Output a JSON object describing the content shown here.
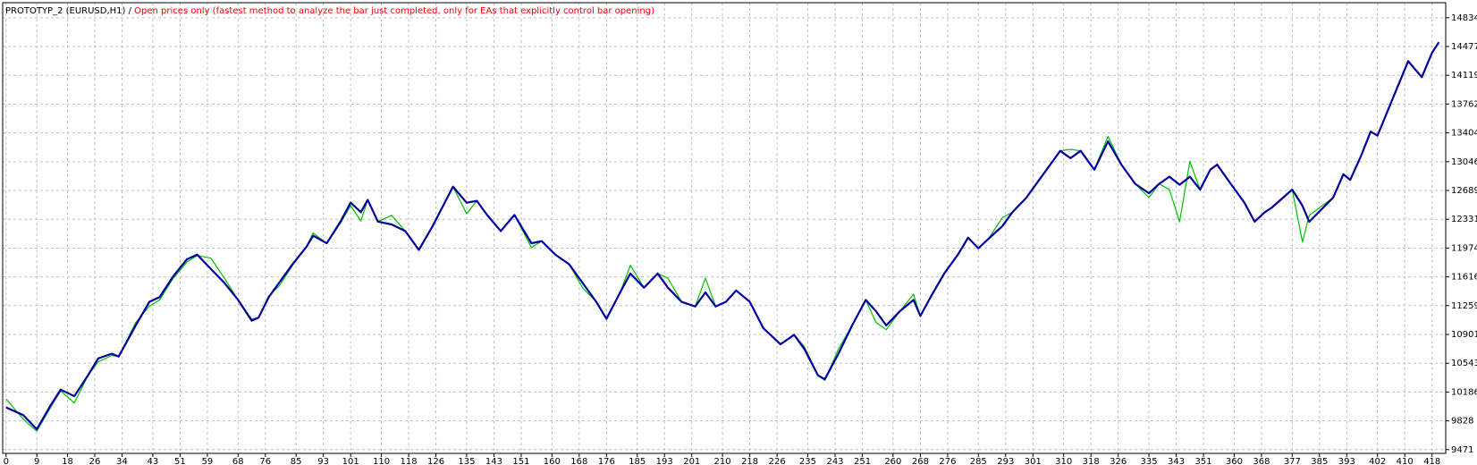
{
  "chart_data": {
    "type": "line",
    "title": "PROTOTYP_2 (EURUSD,H1) /",
    "subtitle": "Open prices only (fastest method to analyze the bar just completed, only for EAs that explicitly control bar opening)",
    "x": [
      0,
      5,
      9,
      13,
      16,
      20,
      24,
      27,
      31,
      33,
      38,
      42,
      45,
      49,
      53,
      56,
      60,
      64,
      68,
      72,
      74,
      77,
      80,
      84,
      88,
      90,
      94,
      98,
      101,
      104,
      106,
      109,
      113,
      117,
      121,
      125,
      129,
      131,
      135,
      138,
      141,
      145,
      149,
      154,
      157,
      161,
      165,
      169,
      173,
      176,
      180,
      183,
      187,
      191,
      194,
      198,
      202,
      205,
      208,
      211,
      214,
      218,
      222,
      227,
      231,
      234,
      238,
      240,
      244,
      248,
      252,
      255,
      258,
      262,
      266,
      268,
      271,
      275,
      279,
      282,
      285,
      288,
      292,
      295,
      299,
      303,
      307,
      309,
      312,
      315,
      319,
      323,
      327,
      331,
      335,
      338,
      341,
      344,
      347,
      350,
      353,
      355,
      359,
      363,
      366,
      369,
      371,
      377,
      380,
      382,
      389,
      392,
      394,
      397,
      400,
      402,
      407,
      411,
      415,
      418,
      420
    ],
    "series": [
      {
        "color": "#00c000",
        "values": [
          10100,
          9850,
          9700,
          9990,
          10200,
          10050,
          10392,
          10560,
          10640,
          10626,
          11050,
          11250,
          11330,
          11600,
          11800,
          11880,
          11850,
          11600,
          11330,
          11090,
          11110,
          11380,
          11500,
          11760,
          11990,
          12160,
          12033,
          12280,
          12500,
          12310,
          12572,
          12302,
          12380,
          12185,
          11951,
          12244,
          12572,
          12736,
          12400,
          12560,
          12385,
          12185,
          12385,
          11980,
          12060,
          11892,
          11775,
          11480,
          11306,
          11095,
          11423,
          11760,
          11482,
          11658,
          11600,
          11306,
          11248,
          11600,
          11248,
          11306,
          11447,
          11306,
          10978,
          10779,
          10896,
          10750,
          10392,
          10330,
          10720,
          11013,
          11330,
          11050,
          10960,
          11189,
          11400,
          11130,
          11365,
          11658,
          11892,
          12103,
          11970,
          12090,
          12350,
          12420,
          12596,
          12830,
          13064,
          13181,
          13200,
          13181,
          12947,
          13360,
          13005,
          12771,
          12600,
          12771,
          12700,
          12300,
          13050,
          12700,
          12947,
          13010,
          12771,
          12537,
          12302,
          12420,
          12475,
          12700,
          12050,
          12380,
          12600,
          12890,
          12820,
          13100,
          13420,
          13370,
          13885,
          14295,
          14096,
          14400,
          14530
        ]
      },
      {
        "color": "#0000a0",
        "values": [
          9994,
          9900,
          9724,
          10017,
          10216,
          10134,
          10392,
          10603,
          10662,
          10626,
          11013,
          11306,
          11365,
          11623,
          11834,
          11892,
          11716,
          11541,
          11330,
          11072,
          11110,
          11365,
          11541,
          11775,
          11986,
          12127,
          12033,
          12302,
          12537,
          12420,
          12572,
          12302,
          12267,
          12185,
          11951,
          12244,
          12572,
          12736,
          12537,
          12560,
          12385,
          12185,
          12385,
          12033,
          12060,
          11892,
          11775,
          11541,
          11306,
          11095,
          11423,
          11658,
          11482,
          11658,
          11482,
          11306,
          11248,
          11423,
          11248,
          11306,
          11447,
          11306,
          10978,
          10779,
          10896,
          10720,
          10392,
          10345,
          10662,
          11013,
          11330,
          11189,
          11013,
          11189,
          11330,
          11130,
          11365,
          11658,
          11892,
          12103,
          11970,
          12090,
          12244,
          12420,
          12596,
          12830,
          13064,
          13181,
          13090,
          13181,
          12947,
          13299,
          13005,
          12771,
          12654,
          12771,
          12860,
          12760,
          12860,
          12700,
          12947,
          13010,
          12771,
          12537,
          12302,
          12420,
          12475,
          12700,
          12500,
          12300,
          12600,
          12890,
          12820,
          13100,
          13420,
          13370,
          13885,
          14295,
          14096,
          14400,
          14530
        ]
      }
    ],
    "xlim": [
      -1,
      422
    ],
    "ylim": [
      9424,
      15021
    ],
    "xticks": [
      0,
      9,
      18,
      26,
      34,
      43,
      51,
      59,
      68,
      76,
      85,
      93,
      101,
      110,
      118,
      126,
      135,
      143,
      151,
      160,
      168,
      176,
      185,
      193,
      201,
      210,
      218,
      226,
      235,
      243,
      251,
      260,
      268,
      276,
      285,
      293,
      301,
      310,
      318,
      326,
      335,
      343,
      351,
      360,
      368,
      377,
      385,
      393,
      402,
      410,
      418
    ],
    "yticks": [
      9471,
      9828,
      10186,
      10543,
      10901,
      11259,
      11616,
      11974,
      12331,
      12689,
      13046,
      13404,
      13762,
      14119,
      14477,
      14834
    ],
    "grid": true
  }
}
